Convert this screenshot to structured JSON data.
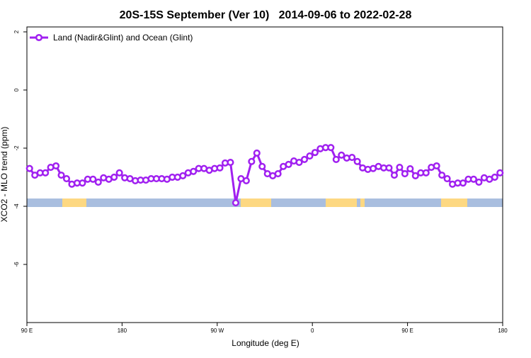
{
  "chart_data": {
    "type": "line",
    "title": "20S-15S September (Ver 10)   2014-09-06 to 2022-02-28",
    "xlabel": "Longitude (deg E)",
    "ylabel": "XCO2 - MLO trend (ppm)",
    "xlim": [
      90,
      540
    ],
    "ylim": [
      -8,
      2.17
    ],
    "xticks": [
      {
        "value": 90,
        "label": "90 E"
      },
      180,
      {
        "value": 270,
        "label": "90 W"
      },
      {
        "value": 360,
        "label": "0"
      },
      {
        "value": 450,
        "label": "90 E"
      },
      {
        "value": 540,
        "label": "180"
      }
    ],
    "yticks": [
      2,
      0,
      -2,
      -4,
      -6
    ],
    "legend": "top-left",
    "x": [
      92.5,
      97.5,
      102.5,
      107.5,
      112.5,
      117.5,
      122.5,
      127.5,
      132.5,
      137.5,
      142.5,
      147.5,
      152.5,
      157.5,
      162.5,
      167.5,
      172.5,
      177.5,
      182.5,
      187.5,
      192.5,
      197.5,
      202.5,
      207.5,
      212.5,
      217.5,
      222.5,
      227.5,
      232.5,
      237.5,
      242.5,
      247.5,
      252.5,
      257.5,
      262.5,
      267.5,
      272.5,
      277.5,
      282.5,
      287.5,
      292.5,
      297.5,
      302.5,
      307.5,
      312.5,
      317.5,
      322.5,
      327.5,
      332.5,
      337.5,
      342.5,
      347.5,
      352.5,
      357.5,
      362.5,
      367.5,
      372.5,
      377.5,
      382.5,
      387.5,
      392.5,
      397.5,
      402.5,
      407.5,
      412.5,
      417.5,
      422.5,
      427.5,
      432.5,
      437.5,
      442.5,
      447.5,
      452.5,
      457.5,
      462.5,
      467.5,
      472.5,
      477.5,
      482.5,
      487.5,
      492.5,
      497.5,
      502.5,
      507.5,
      512.5,
      517.5,
      522.5,
      527.5,
      532.5,
      537.5
    ],
    "series": [
      {
        "name": "Land (Nadir&Glint) and Ocean (Glint)",
        "color": "#a020f0",
        "values": [
          -2.7,
          -2.93,
          -2.85,
          -2.85,
          -2.66,
          -2.61,
          -2.93,
          -3.05,
          -3.24,
          -3.2,
          -3.2,
          -3.07,
          -3.07,
          -3.17,
          -3.02,
          -3.07,
          -3.0,
          -2.85,
          -3.02,
          -3.05,
          -3.12,
          -3.1,
          -3.1,
          -3.05,
          -3.05,
          -3.05,
          -3.07,
          -3.0,
          -3.0,
          -2.95,
          -2.85,
          -2.8,
          -2.7,
          -2.7,
          -2.76,
          -2.7,
          -2.68,
          -2.51,
          -2.49,
          -3.88,
          -3.05,
          -3.12,
          -2.46,
          -2.17,
          -2.63,
          -2.88,
          -2.95,
          -2.88,
          -2.63,
          -2.56,
          -2.44,
          -2.49,
          -2.39,
          -2.27,
          -2.15,
          -2.02,
          -1.98,
          -1.98,
          -2.39,
          -2.24,
          -2.34,
          -2.32,
          -2.46,
          -2.68,
          -2.73,
          -2.7,
          -2.63,
          -2.68,
          -2.68,
          -2.93,
          -2.66,
          -2.88,
          -2.71,
          -2.95,
          -2.85,
          -2.85,
          -2.66,
          -2.61,
          -2.93,
          -3.05,
          -3.24,
          -3.2,
          -3.2,
          -3.07,
          -3.07,
          -3.17,
          -3.02,
          -3.07,
          -3.0,
          -2.85
        ]
      }
    ]
  }
}
